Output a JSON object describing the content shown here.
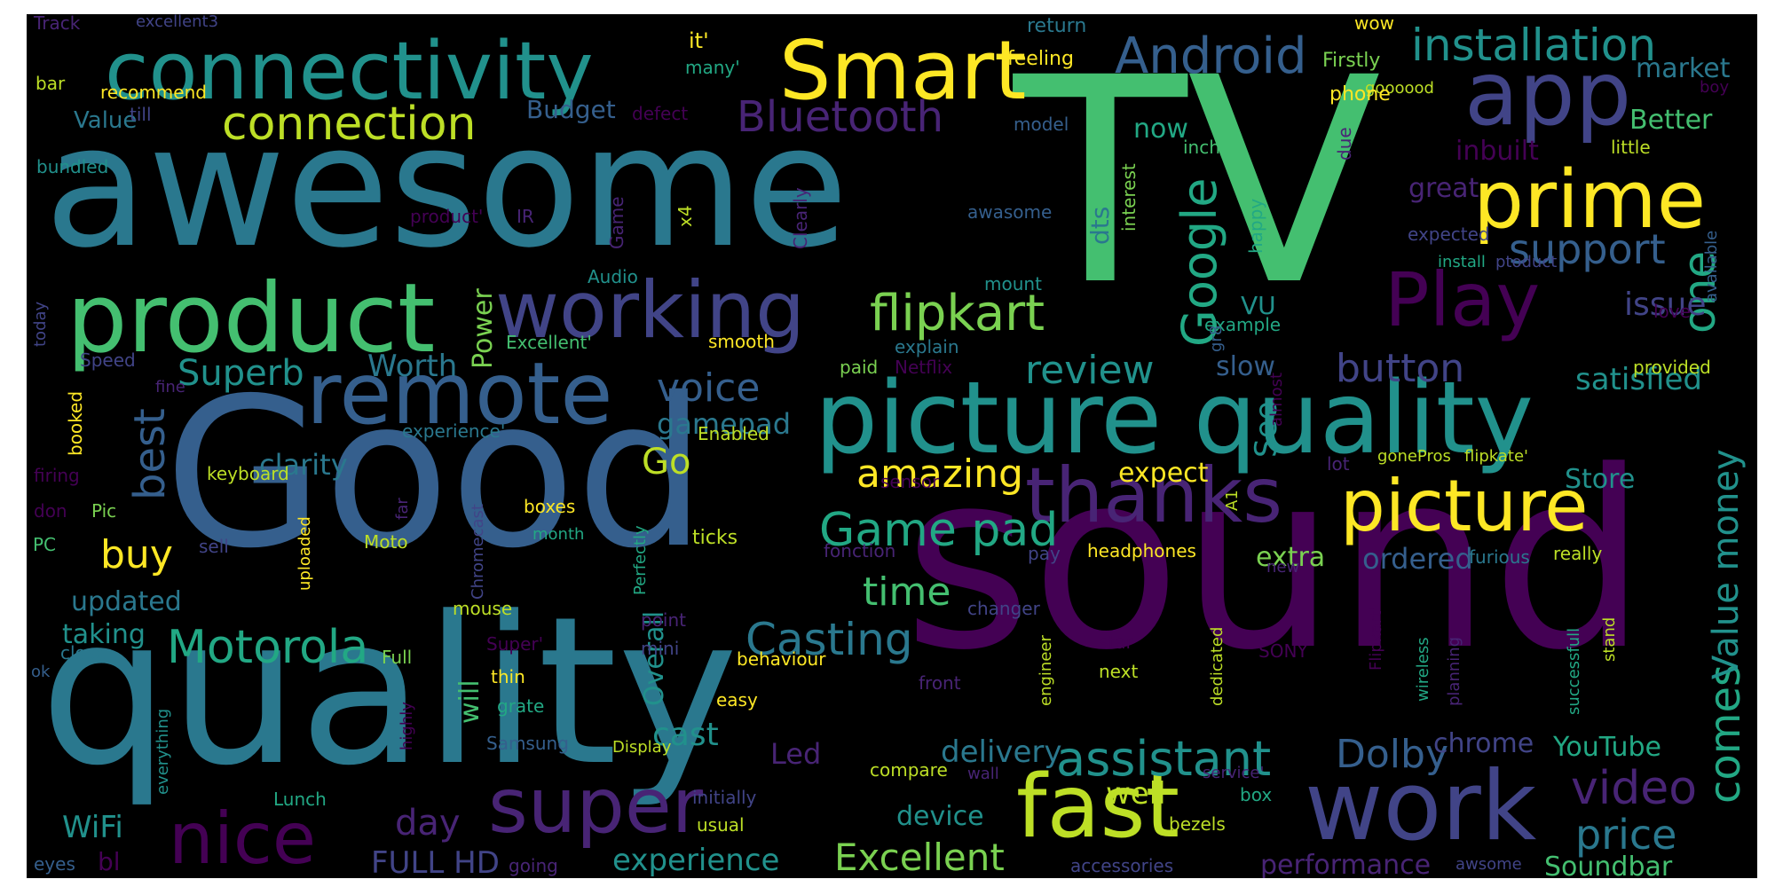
{
  "words": [
    "TV",
    "sound",
    "Good",
    "quality",
    "awesome",
    "picture quality",
    "connectivity",
    "Smart",
    "app",
    "prime",
    "product",
    "working",
    "remote",
    "thanks",
    "picture",
    "fast",
    "work",
    "super",
    "nice",
    "Play",
    "flipkart",
    "Android",
    "connection",
    "installation",
    "Bluetooth",
    "Google",
    "support",
    "review",
    "button",
    "satisfied",
    "one",
    "issue",
    "best",
    "voice",
    "Superb",
    "Worth",
    "Power",
    "gamepad",
    "See",
    "amazing",
    "Go",
    "Game pad",
    "buy",
    "Motorola",
    "Casting",
    "time",
    "assistant",
    "Dolby",
    "video",
    "price",
    "comes",
    "Value money",
    "Excellent",
    "experience",
    "FULL HD",
    "day",
    "delivery",
    "YouTube",
    "Soundbar",
    "performance",
    "updated",
    "taking",
    "WiFi",
    "cast",
    "clarity",
    "expect",
    "Store",
    "extra",
    "ordered",
    "well",
    "device",
    "chrome",
    "Led",
    "Overall",
    "will",
    "dts",
    "VU",
    "slow",
    "now",
    "Better",
    "market",
    "inbuilt",
    "great",
    "Budget",
    "Value",
    "recommend",
    "bar",
    "till",
    "defect",
    "many'",
    "it'",
    "feeling",
    "return",
    "wow",
    "Firstly",
    "goooood",
    "phone",
    "model",
    "inch",
    "due",
    "little",
    "excellent3",
    "Track",
    "bundled",
    "product'",
    "IR",
    "Game",
    "x4",
    "Clearly",
    "interest",
    "happy",
    "expected",
    "install",
    "ptoduct",
    "available",
    "boy",
    "Audio",
    "mount",
    "example",
    "love",
    "provided",
    "today",
    "Speed",
    "Excellent'",
    "smooth",
    "explain",
    "paid",
    "Netflix",
    "gr8",
    "fine",
    "booked",
    "experience'",
    "Enabled",
    "almost",
    "lot",
    "gonePros",
    "flipkate'",
    "firing",
    "keyboard",
    "sensor",
    "don",
    "PC",
    "Pic",
    "far",
    "boxes",
    "month",
    "sell",
    "Moto",
    "uploaded",
    "Chromecast",
    "Perfectly",
    "ticks",
    "fonction",
    "pay",
    "headphones",
    "new",
    "furious",
    "really",
    "A1",
    "mouse",
    "changer",
    "point",
    "mini",
    "Super'",
    "Full",
    "close",
    "ok",
    "thin",
    "behaviour",
    "star",
    "next",
    "SONY",
    "Flipkart'",
    "front",
    "engineer",
    "dedicated",
    "planning",
    "wireless",
    "successfull",
    "stand",
    "grate",
    "easy",
    "highly",
    "Samsung",
    "Display",
    "everything",
    "compare",
    "wall",
    "service'",
    "box",
    "Lunch",
    "initially",
    "usual",
    "going",
    "eyes",
    "bl",
    "bezels",
    "accessories",
    "awsome",
    "awasome"
  ],
  "colors": {
    "background": "#000000",
    "palette": [
      "#440154",
      "#482475",
      "#414487",
      "#355f8d",
      "#2a788e",
      "#21918c",
      "#22a884",
      "#44bf70",
      "#7ad151",
      "#bddf26",
      "#fde725"
    ]
  }
}
